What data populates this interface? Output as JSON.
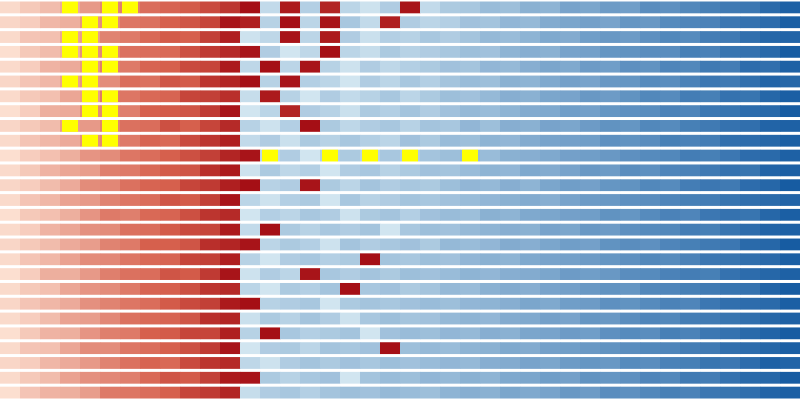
{
  "chart_data": {
    "type": "heatmap",
    "colorscale": [
      [
        0,
        "#fde3d4"
      ],
      [
        30,
        "#d6604d"
      ],
      [
        45,
        "#a50f15"
      ],
      [
        46,
        "#d1e5f0"
      ],
      [
        100,
        "#08519c"
      ]
    ],
    "highlight_color": "#ffff00",
    "highlights": [
      [
        0,
        3
      ],
      [
        0,
        5
      ],
      [
        0,
        6
      ],
      [
        1,
        4
      ],
      [
        1,
        5
      ],
      [
        2,
        3
      ],
      [
        2,
        4
      ],
      [
        3,
        3
      ],
      [
        3,
        4
      ],
      [
        3,
        5
      ],
      [
        4,
        4
      ],
      [
        4,
        5
      ],
      [
        5,
        3
      ],
      [
        5,
        4
      ],
      [
        6,
        4
      ],
      [
        6,
        5
      ],
      [
        7,
        4
      ],
      [
        7,
        5
      ],
      [
        8,
        3
      ],
      [
        8,
        5
      ],
      [
        9,
        4
      ],
      [
        9,
        5
      ],
      [
        10,
        13
      ],
      [
        10,
        16
      ],
      [
        10,
        18
      ],
      [
        10,
        20
      ],
      [
        10,
        23
      ]
    ],
    "values": [
      [
        2,
        6,
        9,
        13,
        17,
        21,
        23,
        27,
        29,
        31,
        34,
        38,
        45,
        50,
        43,
        54,
        41,
        52,
        47,
        55,
        44,
        50,
        56,
        57,
        61,
        60,
        65,
        64,
        70,
        69,
        73,
        72,
        78,
        77,
        80,
        83,
        85,
        86,
        91,
        94
      ],
      [
        3,
        5,
        10,
        12,
        18,
        20,
        25,
        26,
        30,
        32,
        35,
        44,
        42,
        53,
        45,
        52,
        44,
        57,
        50,
        42,
        55,
        52,
        54,
        59,
        58,
        63,
        62,
        67,
        69,
        71,
        70,
        75,
        74,
        79,
        81,
        82,
        86,
        88,
        90,
        95
      ],
      [
        2,
        7,
        8,
        14,
        16,
        22,
        24,
        28,
        31,
        30,
        36,
        42,
        47,
        51,
        44,
        52,
        43,
        55,
        48,
        54,
        53,
        57,
        55,
        58,
        62,
        61,
        64,
        68,
        67,
        72,
        74,
        73,
        77,
        80,
        79,
        84,
        85,
        89,
        92,
        93
      ],
      [
        1,
        6,
        9,
        12,
        19,
        21,
        26,
        27,
        28,
        33,
        37,
        40,
        44,
        55,
        46,
        51,
        45,
        52,
        49,
        56,
        53,
        55,
        57,
        60,
        59,
        64,
        66,
        65,
        70,
        71,
        75,
        76,
        78,
        78,
        83,
        82,
        87,
        88,
        91,
        96
      ],
      [
        2,
        5,
        11,
        13,
        17,
        23,
        24,
        29,
        30,
        34,
        35,
        43,
        51,
        45,
        52,
        44,
        53,
        47,
        55,
        51,
        54,
        56,
        59,
        58,
        63,
        62,
        66,
        69,
        68,
        73,
        72,
        77,
        76,
        81,
        80,
        85,
        84,
        90,
        89,
        94
      ],
      [
        3,
        7,
        10,
        15,
        18,
        20,
        27,
        26,
        32,
        31,
        38,
        41,
        45,
        53,
        44,
        54,
        52,
        46,
        55,
        52,
        57,
        54,
        58,
        61,
        60,
        65,
        64,
        68,
        71,
        70,
        74,
        75,
        79,
        78,
        82,
        86,
        85,
        89,
        93,
        92
      ],
      [
        2,
        6,
        8,
        14,
        16,
        24,
        25,
        28,
        29,
        35,
        36,
        39,
        49,
        43,
        53,
        46,
        55,
        50,
        53,
        57,
        52,
        56,
        60,
        59,
        62,
        66,
        65,
        69,
        70,
        74,
        73,
        76,
        80,
        79,
        84,
        83,
        88,
        87,
        92,
        95
      ],
      [
        1,
        5,
        12,
        13,
        20,
        21,
        23,
        30,
        31,
        32,
        37,
        44,
        46,
        52,
        41,
        55,
        53,
        48,
        56,
        54,
        58,
        55,
        59,
        62,
        61,
        64,
        67,
        68,
        72,
        71,
        75,
        77,
        78,
        82,
        81,
        86,
        87,
        90,
        91,
        96
      ],
      [
        3,
        6,
        9,
        16,
        17,
        22,
        26,
        27,
        33,
        30,
        35,
        40,
        53,
        47,
        54,
        45,
        56,
        51,
        55,
        57,
        53,
        58,
        57,
        63,
        60,
        66,
        65,
        70,
        69,
        73,
        76,
        75,
        80,
        79,
        83,
        85,
        88,
        89,
        93,
        94
      ],
      [
        2,
        7,
        10,
        13,
        19,
        21,
        24,
        29,
        28,
        34,
        38,
        42,
        50,
        55,
        48,
        56,
        53,
        57,
        54,
        52,
        59,
        56,
        61,
        60,
        64,
        63,
        67,
        70,
        71,
        72,
        77,
        76,
        78,
        83,
        82,
        84,
        89,
        90,
        92,
        95
      ],
      [
        1,
        5,
        8,
        12,
        18,
        20,
        25,
        27,
        30,
        33,
        36,
        41,
        44,
        52,
        55,
        46,
        54,
        56,
        53,
        57,
        55,
        58,
        60,
        62,
        61,
        65,
        66,
        68,
        71,
        72,
        74,
        77,
        79,
        80,
        84,
        83,
        86,
        90,
        91,
        94
      ],
      [
        2,
        6,
        11,
        14,
        16,
        23,
        24,
        28,
        31,
        32,
        39,
        43,
        47,
        56,
        51,
        54,
        46,
        55,
        57,
        53,
        56,
        59,
        58,
        61,
        64,
        63,
        68,
        67,
        70,
        74,
        73,
        78,
        77,
        81,
        82,
        85,
        88,
        87,
        93,
        95
      ],
      [
        3,
        5,
        9,
        13,
        20,
        21,
        26,
        29,
        30,
        35,
        37,
        42,
        45,
        53,
        55,
        44,
        56,
        52,
        58,
        55,
        57,
        56,
        60,
        63,
        62,
        66,
        64,
        69,
        72,
        71,
        75,
        76,
        80,
        79,
        84,
        86,
        85,
        90,
        92,
        96
      ],
      [
        2,
        7,
        10,
        15,
        17,
        22,
        25,
        27,
        32,
        31,
        36,
        44,
        52,
        47,
        54,
        56,
        46,
        57,
        53,
        55,
        58,
        57,
        59,
        61,
        63,
        65,
        67,
        66,
        70,
        73,
        74,
        77,
        78,
        81,
        83,
        84,
        87,
        89,
        91,
        93
      ],
      [
        1,
        6,
        8,
        12,
        18,
        24,
        23,
        28,
        29,
        33,
        38,
        40,
        46,
        54,
        52,
        57,
        55,
        47,
        56,
        58,
        54,
        59,
        61,
        60,
        65,
        64,
        68,
        69,
        71,
        72,
        76,
        75,
        79,
        82,
        81,
        86,
        88,
        87,
        92,
        95
      ],
      [
        2,
        5,
        11,
        14,
        19,
        20,
        26,
        27,
        31,
        34,
        35,
        43,
        50,
        45,
        56,
        53,
        57,
        55,
        58,
        46,
        57,
        60,
        59,
        62,
        64,
        66,
        65,
        70,
        69,
        74,
        73,
        77,
        79,
        80,
        84,
        83,
        87,
        90,
        93,
        94
      ],
      [
        3,
        6,
        9,
        13,
        16,
        22,
        24,
        30,
        30,
        32,
        39,
        41,
        44,
        52,
        56,
        54,
        47,
        58,
        55,
        57,
        59,
        56,
        62,
        61,
        63,
        67,
        66,
        69,
        72,
        71,
        76,
        78,
        77,
        81,
        83,
        85,
        86,
        91,
        92,
        96
      ],
      [
        2,
        7,
        10,
        15,
        20,
        21,
        25,
        28,
        29,
        35,
        36,
        42,
        53,
        46,
        55,
        57,
        54,
        56,
        45,
        58,
        57,
        60,
        59,
        63,
        65,
        64,
        68,
        70,
        71,
        73,
        75,
        77,
        80,
        79,
        82,
        86,
        87,
        89,
        91,
        95
      ],
      [
        1,
        5,
        12,
        12,
        17,
        23,
        26,
        27,
        32,
        31,
        37,
        44,
        47,
        55,
        52,
        44,
        57,
        55,
        58,
        56,
        60,
        59,
        61,
        64,
        63,
        66,
        67,
        69,
        73,
        72,
        74,
        78,
        79,
        82,
        84,
        83,
        88,
        90,
        92,
        94
      ],
      [
        2,
        6,
        8,
        14,
        18,
        20,
        24,
        29,
        30,
        33,
        38,
        40,
        52,
        46,
        56,
        54,
        58,
        45,
        57,
        59,
        56,
        58,
        62,
        61,
        65,
        67,
        66,
        70,
        71,
        74,
        76,
        75,
        80,
        81,
        83,
        85,
        87,
        88,
        93,
        96
      ],
      [
        3,
        7,
        10,
        13,
        19,
        22,
        25,
        27,
        31,
        34,
        36,
        43,
        45,
        53,
        55,
        57,
        46,
        56,
        58,
        57,
        59,
        61,
        60,
        63,
        64,
        66,
        69,
        68,
        72,
        73,
        77,
        76,
        79,
        82,
        81,
        86,
        89,
        90,
        91,
        95
      ],
      [
        2,
        5,
        9,
        15,
        16,
        21,
        26,
        28,
        29,
        32,
        39,
        41,
        48,
        56,
        53,
        58,
        55,
        47,
        57,
        60,
        58,
        59,
        62,
        64,
        63,
        67,
        68,
        71,
        70,
        75,
        74,
        78,
        81,
        80,
        84,
        85,
        87,
        89,
        92,
        94
      ],
      [
        1,
        6,
        11,
        12,
        18,
        23,
        24,
        30,
        31,
        35,
        35,
        42,
        53,
        45,
        57,
        54,
        56,
        58,
        46,
        59,
        61,
        60,
        63,
        62,
        66,
        65,
        69,
        70,
        73,
        72,
        77,
        79,
        78,
        83,
        82,
        86,
        88,
        91,
        93,
        96
      ],
      [
        2,
        7,
        8,
        14,
        20,
        20,
        25,
        27,
        30,
        33,
        37,
        44,
        46,
        55,
        56,
        52,
        58,
        57,
        59,
        45,
        60,
        62,
        61,
        64,
        65,
        68,
        67,
        71,
        72,
        74,
        76,
        78,
        80,
        81,
        84,
        85,
        89,
        90,
        92,
        95
      ],
      [
        3,
        5,
        10,
        13,
        17,
        22,
        26,
        29,
        28,
        34,
        38,
        40,
        51,
        47,
        55,
        58,
        56,
        59,
        57,
        60,
        59,
        61,
        63,
        62,
        66,
        67,
        70,
        69,
        73,
        75,
        74,
        79,
        78,
        82,
        83,
        87,
        86,
        90,
        94,
        93
      ],
      [
        2,
        6,
        9,
        15,
        19,
        21,
        23,
        28,
        32,
        31,
        36,
        43,
        44,
        56,
        53,
        57,
        59,
        46,
        58,
        61,
        60,
        63,
        62,
        65,
        64,
        68,
        69,
        72,
        71,
        76,
        75,
        77,
        81,
        80,
        85,
        84,
        88,
        91,
        92,
        96
      ],
      [
        1,
        7,
        11,
        12,
        16,
        24,
        25,
        27,
        30,
        35,
        37,
        41,
        49,
        55,
        57,
        54,
        58,
        60,
        59,
        62,
        61,
        60,
        64,
        66,
        65,
        69,
        68,
        70,
        74,
        73,
        78,
        77,
        80,
        83,
        82,
        86,
        87,
        89,
        93,
        95
      ]
    ]
  }
}
